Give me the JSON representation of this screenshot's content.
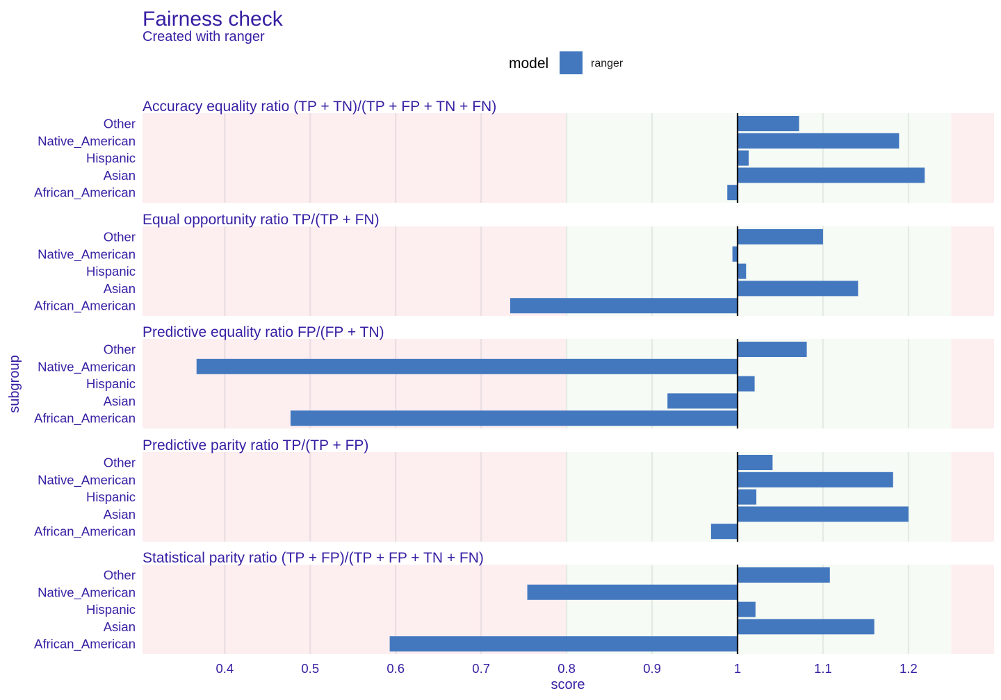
{
  "chart_data": {
    "type": "bar",
    "title": "Fairness check",
    "subtitle": "Created with ranger",
    "xlabel": "score",
    "ylabel": "subgroup",
    "legend": {
      "title": "model",
      "entries": [
        {
          "name": "ranger",
          "color": "#4378bf"
        }
      ],
      "placement": "top"
    },
    "xlim": [
      0.305,
      1.3
    ],
    "x_ticks": [
      0.4,
      0.5,
      0.6,
      0.7,
      0.8,
      0.9,
      1.0,
      1.1,
      1.2
    ],
    "x_tick_labels": [
      "0.4",
      "0.5",
      "0.6",
      "0.7",
      "0.8",
      "0.9",
      "1",
      "1.1",
      "1.2"
    ],
    "baseline": 1.0,
    "fair_range": [
      0.8,
      1.25
    ],
    "categories": [
      "Other",
      "Native_American",
      "Hispanic",
      "Asian",
      "African_American"
    ],
    "panels": [
      {
        "metric": "Accuracy equality ratio",
        "formula": "(TP + TN)/(TP + FP + TN + FN)",
        "values": [
          1.072,
          1.189,
          1.013,
          1.219,
          0.988
        ]
      },
      {
        "metric": "Equal opportunity ratio",
        "formula": "TP/(TP + FN)",
        "values": [
          1.1,
          0.994,
          1.01,
          1.141,
          0.734
        ]
      },
      {
        "metric": "Predictive equality ratio",
        "formula": "FP/(FP + TN)",
        "values": [
          1.081,
          0.367,
          1.02,
          0.918,
          0.477
        ]
      },
      {
        "metric": "Predictive parity ratio",
        "formula": "TP/(TP + FP)",
        "values": [
          1.041,
          1.182,
          1.022,
          1.2,
          0.969
        ]
      },
      {
        "metric": "Statistical parity ratio",
        "formula": "(TP + FP)/(TP + FP + TN + FN)",
        "values": [
          1.108,
          0.754,
          1.021,
          1.16,
          0.593
        ]
      }
    ],
    "colors": {
      "bar": "#4378bf",
      "unfair_zone": "#fdeef0",
      "fair_zone": "#f6fbf5",
      "text": "#371ea3",
      "baseline": "#000000"
    },
    "grid": true
  }
}
